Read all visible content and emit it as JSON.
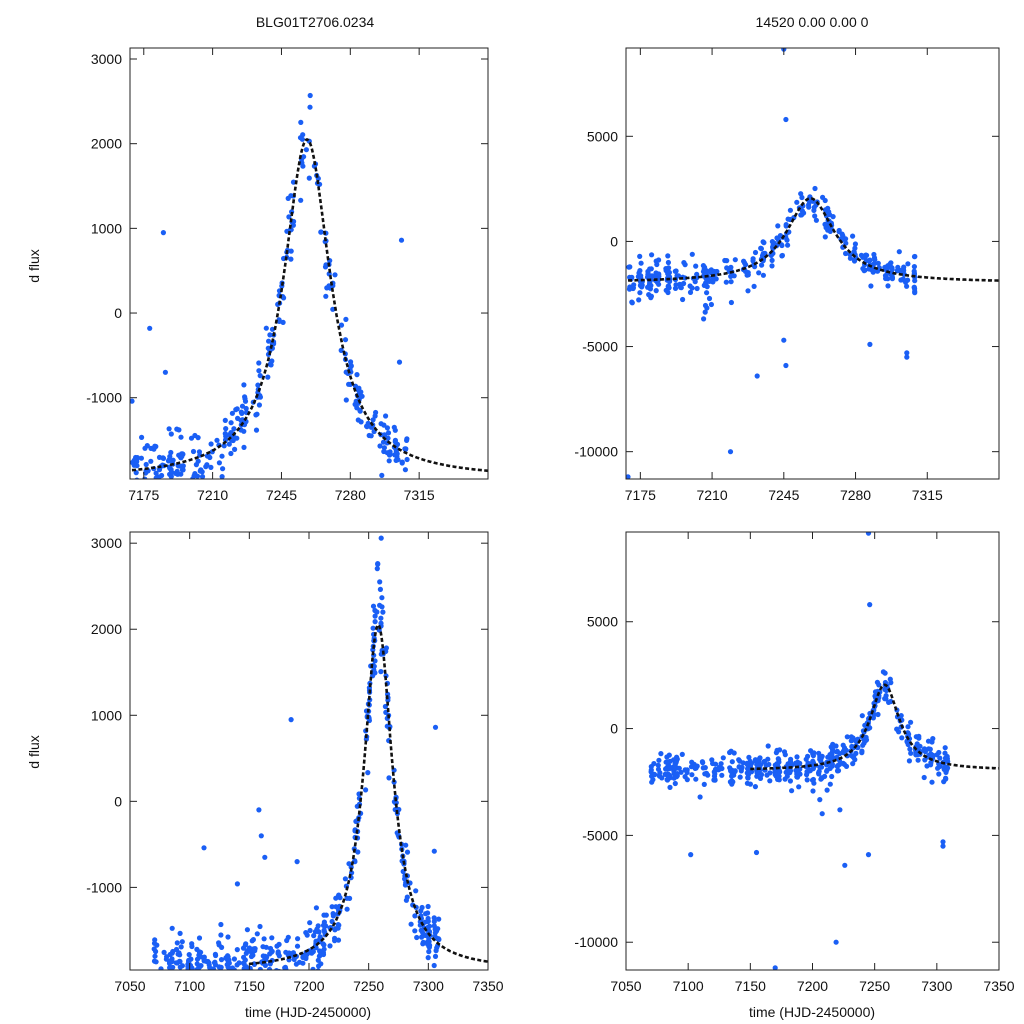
{
  "chart_data": [
    {
      "id": "top-left",
      "type": "scatter",
      "title": "BLG01T2706.0234",
      "ylabel": "d flux",
      "xlabel": "",
      "xlim": [
        7168,
        7350
      ],
      "ylim": [
        -1960,
        3130
      ],
      "xticks": [
        7175,
        7210,
        7245,
        7280,
        7315
      ],
      "xtick_labels": [
        "7175",
        "7210",
        "7245",
        "7280",
        "7315"
      ],
      "yticks": [
        3000,
        2000,
        1000,
        0,
        -1000
      ],
      "ytick_labels": [
        "3000",
        "2000",
        "1000",
        "0",
        "-1000"
      ],
      "model": {
        "t0": 7258,
        "peak": 2050,
        "baseline": -1960,
        "tE": 14.5
      },
      "seed": 11,
      "outliers": [
        [
          7185,
          950
        ],
        [
          7178,
          -180
        ],
        [
          7186,
          -700
        ],
        [
          7306,
          860
        ],
        [
          7305,
          -580
        ],
        [
          7169,
          -1040
        ]
      ],
      "series": [
        {
          "name": "data",
          "color": "#1a5ff5"
        },
        {
          "name": "fit",
          "color": "#111111",
          "style": "dashed"
        }
      ]
    },
    {
      "id": "top-right",
      "type": "scatter",
      "title": "14520  0.00  0.00  0",
      "ylabel": "",
      "xlabel": "",
      "xlim": [
        7168,
        7350
      ],
      "ylim": [
        -11300,
        9200
      ],
      "xticks": [
        7175,
        7210,
        7245,
        7280,
        7315
      ],
      "xtick_labels": [
        "7175",
        "7210",
        "7245",
        "7280",
        "7315"
      ],
      "yticks": [
        5000,
        0,
        -5000,
        -10000
      ],
      "ytick_labels": [
        "5000",
        "0",
        "-5000",
        "-10000"
      ],
      "model": {
        "t0": 7258,
        "peak": 2050,
        "baseline": -1960,
        "tE": 14.5
      },
      "seed": 23,
      "outliers": [
        [
          7245,
          9150
        ],
        [
          7246,
          5800
        ],
        [
          7245,
          -4700
        ],
        [
          7246,
          -5900
        ],
        [
          7232,
          -6400
        ],
        [
          7219,
          -10000
        ],
        [
          7169,
          -11200
        ],
        [
          7305,
          -5300
        ],
        [
          7305,
          -5500
        ],
        [
          7287,
          -4900
        ]
      ],
      "series": [
        {
          "name": "data",
          "color": "#1a5ff5"
        },
        {
          "name": "fit",
          "color": "#111111",
          "style": "dashed"
        }
      ]
    },
    {
      "id": "bottom-left",
      "type": "scatter",
      "title": "",
      "ylabel": "d flux",
      "xlabel": "time (HJD-2450000)",
      "xlim": [
        7050,
        7350
      ],
      "ylim": [
        -1960,
        3130
      ],
      "xticks": [
        7050,
        7100,
        7150,
        7200,
        7250,
        7300,
        7350
      ],
      "xtick_labels": [
        "7050",
        "7100",
        "7150",
        "7200",
        "7250",
        "7300",
        "7350"
      ],
      "yticks": [
        3000,
        2000,
        1000,
        0,
        -1000
      ],
      "ytick_labels": [
        "3000",
        "2000",
        "1000",
        "0",
        "-1000"
      ],
      "model": {
        "t0": 7258,
        "peak": 2050,
        "baseline": -1960,
        "tE": 14.5
      },
      "seed": 37,
      "outliers": [
        [
          7185,
          950
        ],
        [
          7112,
          -540
        ],
        [
          7158,
          -100
        ],
        [
          7160,
          -400
        ],
        [
          7163,
          -650
        ],
        [
          7190,
          -700
        ],
        [
          7306,
          860
        ],
        [
          7305,
          -580
        ],
        [
          7140,
          -960
        ]
      ],
      "series": [
        {
          "name": "data",
          "color": "#1a5ff5"
        },
        {
          "name": "fit",
          "color": "#111111",
          "style": "dashed"
        }
      ]
    },
    {
      "id": "bottom-right",
      "type": "scatter",
      "title": "",
      "ylabel": "",
      "xlabel": "time (HJD-2450000)",
      "xlim": [
        7050,
        7350
      ],
      "ylim": [
        -11300,
        9200
      ],
      "xticks": [
        7050,
        7100,
        7150,
        7200,
        7250,
        7300,
        7350
      ],
      "xtick_labels": [
        "7050",
        "7100",
        "7150",
        "7200",
        "7250",
        "7300",
        "7350"
      ],
      "yticks": [
        5000,
        0,
        -5000,
        -10000
      ],
      "ytick_labels": [
        "5000",
        "0",
        "-5000",
        "-10000"
      ],
      "model": {
        "t0": 7258,
        "peak": 2050,
        "baseline": -1960,
        "tE": 14.5
      },
      "seed": 53,
      "outliers": [
        [
          7245,
          9150
        ],
        [
          7246,
          5800
        ],
        [
          7245,
          -5900
        ],
        [
          7226,
          -6400
        ],
        [
          7219,
          -10000
        ],
        [
          7170,
          -11200
        ],
        [
          7305,
          -5300
        ],
        [
          7305,
          -5500
        ],
        [
          7102,
          -5900
        ],
        [
          7155,
          -5800
        ],
        [
          7222,
          -3800
        ]
      ],
      "series": [
        {
          "name": "data",
          "color": "#1a5ff5"
        },
        {
          "name": "fit",
          "color": "#111111",
          "style": "dashed"
        }
      ]
    }
  ]
}
